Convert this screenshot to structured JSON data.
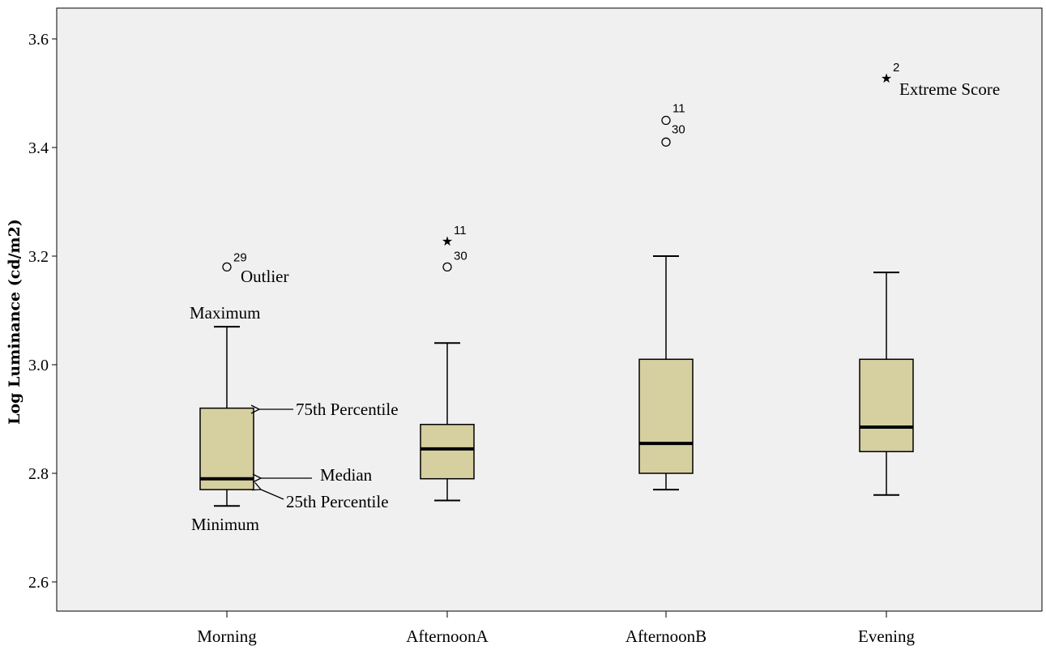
{
  "chart_data": {
    "type": "box",
    "ylabel": "Log Luminance (cd/m2)",
    "xlabel": "",
    "ylim": [
      2.55,
      3.66
    ],
    "yticks": [
      "2.6",
      "2.8",
      "3.0",
      "3.2",
      "3.4",
      "3.6"
    ],
    "grid": false,
    "colors": {
      "box_fill": "#d6cf9f",
      "plot_bg": "#f0f0f0",
      "stroke": "#000000"
    },
    "categories": [
      "Morning",
      "AfternoonA",
      "AfternoonB",
      "Evening"
    ],
    "boxes": [
      {
        "category": "Morning",
        "min": 2.74,
        "q1": 2.77,
        "median": 2.79,
        "q3": 2.92,
        "max": 3.07,
        "outliers": [
          {
            "value": 3.18,
            "marker": "circle",
            "label": "29"
          }
        ]
      },
      {
        "category": "AfternoonA",
        "min": 2.75,
        "q1": 2.79,
        "median": 2.845,
        "q3": 2.89,
        "max": 3.04,
        "outliers": [
          {
            "value": 3.23,
            "marker": "star",
            "label": "11"
          },
          {
            "value": 3.18,
            "marker": "circle",
            "label": "30"
          }
        ]
      },
      {
        "category": "AfternoonB",
        "min": 2.77,
        "q1": 2.8,
        "median": 2.855,
        "q3": 3.01,
        "max": 3.2,
        "outliers": [
          {
            "value": 3.45,
            "marker": "circle",
            "label": "11"
          },
          {
            "value": 3.41,
            "marker": "circle",
            "label": "30"
          }
        ]
      },
      {
        "category": "Evening",
        "min": 2.76,
        "q1": 2.84,
        "median": 2.885,
        "q3": 3.01,
        "max": 3.17,
        "outliers": [
          {
            "value": 3.53,
            "marker": "star",
            "label": "2"
          }
        ]
      }
    ],
    "annotations": {
      "outlier": "Outlier",
      "maximum": "Maximum",
      "p75": "75th Percentile",
      "median": "Median",
      "p25": "25th Percentile",
      "minimum": "Minimum",
      "extreme": "Extreme Score"
    }
  }
}
